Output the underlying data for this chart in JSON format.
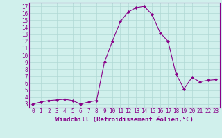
{
  "x": [
    0,
    1,
    2,
    3,
    4,
    5,
    6,
    7,
    8,
    9,
    10,
    11,
    12,
    13,
    14,
    15,
    16,
    17,
    18,
    19,
    20,
    21,
    22,
    23
  ],
  "y": [
    3.0,
    3.3,
    3.5,
    3.6,
    3.7,
    3.5,
    3.0,
    3.3,
    3.5,
    9.0,
    12.0,
    14.8,
    16.2,
    16.8,
    17.0,
    15.8,
    13.2,
    12.0,
    7.3,
    5.2,
    6.8,
    6.2,
    6.4,
    6.5
  ],
  "line_color": "#880088",
  "marker": "D",
  "marker_size": 2.0,
  "bg_color": "#d0f0ec",
  "grid_color": "#b0d8d4",
  "xlabel": "Windchill (Refroidissement éolien,°C)",
  "xlabel_color": "#880088",
  "tick_color": "#880088",
  "ylim": [
    2.5,
    17.5
  ],
  "xlim": [
    -0.5,
    23.5
  ],
  "yticks": [
    3,
    4,
    5,
    6,
    7,
    8,
    9,
    10,
    11,
    12,
    13,
    14,
    15,
    16,
    17
  ],
  "xticks": [
    0,
    1,
    2,
    3,
    4,
    5,
    6,
    7,
    8,
    9,
    10,
    11,
    12,
    13,
    14,
    15,
    16,
    17,
    18,
    19,
    20,
    21,
    22,
    23
  ],
  "axis_spine_color": "#880088",
  "label_fontsize": 6.5,
  "tick_fontsize": 5.5
}
